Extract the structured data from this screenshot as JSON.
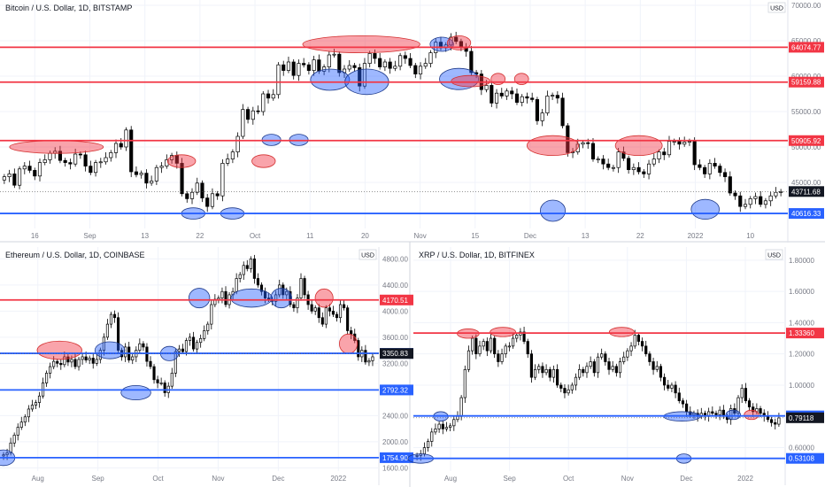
{
  "chart_data": [
    {
      "type": "candlestick",
      "title": "Bitcoin / U.S. Dollar, 1D, BITSTAMP",
      "currency": "USD",
      "ylim": [
        38500,
        70000
      ],
      "y_ticks": [
        "70000.00",
        "65000.00",
        "60000.00",
        "55000.00",
        "50000.00",
        "45000.00"
      ],
      "x_ticks": [
        "16",
        "Sep",
        "13",
        "22",
        "Oct",
        "11",
        "20",
        "Nov",
        "15",
        "Dec",
        "13",
        "22",
        "2022",
        "10"
      ],
      "last_price": 43711.68,
      "levels": [
        {
          "value": 64074.77,
          "label": "64074.77",
          "color": "#f23645"
        },
        {
          "value": 59159.88,
          "label": "59159.88",
          "color": "#f23645"
        },
        {
          "value": 50905.92,
          "label": "50905.92",
          "color": "#f23645"
        },
        {
          "value": 40616.33,
          "label": "40616.33",
          "color": "#2962ff"
        }
      ],
      "closes": [
        45800,
        46200,
        44600,
        46900,
        47300,
        46700,
        45900,
        47800,
        48200,
        49100,
        49400,
        48100,
        47800,
        47600,
        49000,
        48900,
        47300,
        46400,
        47800,
        47900,
        48500,
        49200,
        50500,
        50000,
        52400,
        46500,
        46100,
        46300,
        44900,
        45200,
        47100,
        47300,
        48200,
        48800,
        47700,
        43400,
        42700,
        43600,
        44900,
        42800,
        41600,
        43400,
        43100,
        47700,
        48300,
        49300,
        51500,
        55300,
        53900,
        55100,
        55000,
        57500,
        56900,
        57400,
        61600,
        60800,
        62000,
        60100,
        61800,
        61600,
        60800,
        62300,
        60700,
        61300,
        63000,
        63100,
        60500,
        61000,
        61500,
        61200,
        58600,
        61800,
        63200,
        62500,
        61300,
        62000,
        61100,
        61400,
        62900,
        62500,
        61500,
        60300,
        61400,
        61800,
        63300,
        64800,
        64000,
        64400,
        65500,
        64900,
        64100,
        63500,
        60500,
        60300,
        58100,
        58700,
        56200,
        57600,
        57200,
        57900,
        57500,
        56300,
        57100,
        56900,
        56700,
        53700,
        54800,
        57200,
        57300,
        56900,
        53000,
        49200,
        49300,
        50400,
        50600,
        50500,
        48300,
        48300,
        47600,
        47100,
        47100,
        49300,
        48400,
        46800,
        47100,
        46500,
        46200,
        47600,
        48300,
        49300,
        48900,
        50800,
        50800,
        50400,
        50700,
        50800,
        47500,
        47100,
        46200,
        47700,
        47300,
        46400,
        45800,
        43500,
        43100,
        41600,
        41900,
        42700,
        43000,
        41900,
        42400,
        43100,
        43600,
        43700
      ],
      "markers": [
        {
          "cx": 0.07,
          "cy": 50000,
          "rx": 0.06,
          "ry": 900,
          "color": "red"
        },
        {
          "cx": 0.23,
          "cy": 48000,
          "rx": 0.018,
          "ry": 900,
          "color": "red"
        },
        {
          "cx": 0.335,
          "cy": 48000,
          "rx": 0.015,
          "ry": 900,
          "color": "red"
        },
        {
          "cx": 0.245,
          "cy": 40616,
          "rx": 0.015,
          "ry": 800,
          "color": "blue"
        },
        {
          "cx": 0.295,
          "cy": 40616,
          "rx": 0.015,
          "ry": 800,
          "color": "blue"
        },
        {
          "cx": 0.345,
          "cy": 51000,
          "rx": 0.012,
          "ry": 800,
          "color": "blue"
        },
        {
          "cx": 0.38,
          "cy": 51000,
          "rx": 0.012,
          "ry": 800,
          "color": "blue"
        },
        {
          "cx": 0.42,
          "cy": 59500,
          "rx": 0.025,
          "ry": 1500,
          "color": "blue"
        },
        {
          "cx": 0.467,
          "cy": 59200,
          "rx": 0.028,
          "ry": 1800,
          "color": "blue"
        },
        {
          "cx": 0.46,
          "cy": 64500,
          "rx": 0.075,
          "ry": 1200,
          "color": "red"
        },
        {
          "cx": 0.563,
          "cy": 64500,
          "rx": 0.015,
          "ry": 1000,
          "color": "blue"
        },
        {
          "cx": 0.585,
          "cy": 64700,
          "rx": 0.015,
          "ry": 1000,
          "color": "red"
        },
        {
          "cx": 0.585,
          "cy": 59600,
          "rx": 0.025,
          "ry": 1500,
          "color": "blue"
        },
        {
          "cx": 0.6,
          "cy": 59300,
          "rx": 0.025,
          "ry": 800,
          "color": "red"
        },
        {
          "cx": 0.635,
          "cy": 59600,
          "rx": 0.009,
          "ry": 800,
          "color": "red"
        },
        {
          "cx": 0.665,
          "cy": 59600,
          "rx": 0.009,
          "ry": 800,
          "color": "red"
        },
        {
          "cx": 0.705,
          "cy": 50200,
          "rx": 0.033,
          "ry": 1400,
          "color": "red"
        },
        {
          "cx": 0.815,
          "cy": 50200,
          "rx": 0.03,
          "ry": 1400,
          "color": "red"
        },
        {
          "cx": 0.705,
          "cy": 41000,
          "rx": 0.016,
          "ry": 1500,
          "color": "blue"
        },
        {
          "cx": 0.9,
          "cy": 41200,
          "rx": 0.018,
          "ry": 1400,
          "color": "blue"
        }
      ]
    },
    {
      "type": "candlestick",
      "title": "Ethereum / U.S. Dollar, 1D, COINBASE",
      "currency": "USD",
      "ylim": [
        1550,
        4900
      ],
      "y_ticks": [
        "4800.00",
        "4400.00",
        "4000.00",
        "3600.00",
        "3200.00",
        "2800.00",
        "2400.00",
        "2000.00",
        "1600.00"
      ],
      "x_ticks": [
        "Aug",
        "Sep",
        "Oct",
        "Nov",
        "Dec",
        "2022"
      ],
      "last_price": 3350.83,
      "levels": [
        {
          "value": 4170.51,
          "label": "4170.51",
          "color": "#f23645"
        },
        {
          "value": 3352.69,
          "label": "3352.69",
          "color": "#2962ff"
        },
        {
          "value": 2792.32,
          "label": "2792.32",
          "color": "#2962ff"
        },
        {
          "value": 1754.9,
          "label": "1754.90",
          "color": "#2962ff"
        }
      ],
      "closes": [
        1800,
        1830,
        1980,
        2100,
        2220,
        2300,
        2380,
        2500,
        2560,
        2600,
        2700,
        2900,
        3050,
        3150,
        3230,
        3200,
        3180,
        3300,
        3220,
        3260,
        3150,
        3260,
        3300,
        3250,
        3280,
        3200,
        3260,
        3400,
        3600,
        3800,
        3950,
        3900,
        3400,
        3300,
        3450,
        3250,
        3300,
        3400,
        3500,
        3450,
        3230,
        3150,
        2950,
        2900,
        2900,
        2750,
        2850,
        3050,
        3380,
        3420,
        3380,
        3550,
        3600,
        3420,
        3520,
        3580,
        3700,
        3800,
        4100,
        4180,
        4200,
        4300,
        4100,
        4250,
        4300,
        4500,
        4560,
        4700,
        4650,
        4800,
        4500,
        4400,
        4300,
        4200,
        4180,
        4150,
        4250,
        4400,
        4250,
        4300,
        4100,
        4050,
        4200,
        4500,
        4250,
        4100,
        4000,
        4050,
        3900,
        3800,
        4050,
        4000,
        3950,
        3900,
        4100,
        4050,
        3700,
        3650,
        3550,
        3300,
        3400,
        3220,
        3240,
        3300
      ],
      "markers": [
        {
          "cx": 0.155,
          "cy": 3400,
          "rx": 0.06,
          "ry": 140,
          "color": "red"
        },
        {
          "cx": 0.29,
          "cy": 3400,
          "rx": 0.04,
          "ry": 130,
          "color": "blue"
        },
        {
          "cx": 0.36,
          "cy": 2750,
          "rx": 0.04,
          "ry": 110,
          "color": "blue"
        },
        {
          "cx": 0.45,
          "cy": 3350,
          "rx": 0.024,
          "ry": 110,
          "color": "blue"
        },
        {
          "cx": 0.53,
          "cy": 4200,
          "rx": 0.028,
          "ry": 150,
          "color": "blue"
        },
        {
          "cx": 0.67,
          "cy": 4200,
          "rx": 0.055,
          "ry": 140,
          "color": "blue"
        },
        {
          "cx": 0.75,
          "cy": 4200,
          "rx": 0.028,
          "ry": 150,
          "color": "blue"
        },
        {
          "cx": 0.865,
          "cy": 4200,
          "rx": 0.024,
          "ry": 140,
          "color": "red"
        },
        {
          "cx": 0.93,
          "cy": 3500,
          "rx": 0.024,
          "ry": 150,
          "color": "red"
        },
        {
          "cx": 0.005,
          "cy": 1754,
          "rx": 0.03,
          "ry": 120,
          "color": "blue"
        }
      ]
    },
    {
      "type": "candlestick",
      "title": "XRP / U.S. Dollar, 1D, BITFINEX",
      "currency": "USD",
      "ylim": [
        0.45,
        1.85
      ],
      "y_ticks": [
        "1.80000",
        "1.60000",
        "1.40000",
        "1.20000",
        "1.00000",
        "0.80000",
        "0.60000"
      ],
      "x_ticks": [
        "Aug",
        "Sep",
        "Oct",
        "Nov",
        "Dec",
        "2022"
      ],
      "last_price": 0.79118,
      "levels": [
        {
          "value": 1.3336,
          "label": "1.33360",
          "color": "#f23645"
        },
        {
          "value": 0.8033,
          "label": "0.80330",
          "color": "#2962ff"
        },
        {
          "value": 0.53108,
          "label": "0.53108",
          "color": "#2962ff"
        }
      ],
      "closes": [
        0.55,
        0.56,
        0.6,
        0.64,
        0.7,
        0.72,
        0.75,
        0.72,
        0.73,
        0.74,
        0.78,
        0.8,
        0.92,
        1.1,
        1.22,
        1.3,
        1.2,
        1.25,
        1.28,
        1.22,
        1.3,
        1.2,
        1.15,
        1.2,
        1.25,
        1.25,
        1.3,
        1.32,
        1.34,
        1.28,
        1.2,
        1.05,
        1.1,
        1.12,
        1.08,
        1.1,
        1.05,
        1.1,
        1.0,
        0.98,
        0.95,
        0.97,
        1.0,
        1.05,
        1.1,
        1.08,
        1.12,
        1.15,
        1.08,
        1.18,
        1.2,
        1.15,
        1.1,
        1.12,
        1.08,
        1.15,
        1.18,
        1.22,
        1.25,
        1.32,
        1.28,
        1.25,
        1.2,
        1.15,
        1.1,
        1.12,
        1.05,
        1.0,
        0.98,
        1.0,
        0.95,
        0.9,
        0.88,
        0.83,
        0.81,
        0.82,
        0.8,
        0.82,
        0.8,
        0.83,
        0.82,
        0.81,
        0.84,
        0.8,
        0.78,
        0.85,
        0.82,
        0.92,
        0.98,
        0.9,
        0.86,
        0.83,
        0.85,
        0.82,
        0.8,
        0.78,
        0.76,
        0.75,
        0.79
      ],
      "markers": [
        {
          "cx": 0.015,
          "cy": 0.53,
          "rx": 0.035,
          "ry": 0.03,
          "color": "blue"
        },
        {
          "cx": 0.07,
          "cy": 0.8,
          "rx": 0.02,
          "ry": 0.03,
          "color": "blue"
        },
        {
          "cx": 0.145,
          "cy": 1.33,
          "rx": 0.03,
          "ry": 0.03,
          "color": "red"
        },
        {
          "cx": 0.24,
          "cy": 1.34,
          "rx": 0.035,
          "ry": 0.03,
          "color": "red"
        },
        {
          "cx": 0.565,
          "cy": 1.34,
          "rx": 0.034,
          "ry": 0.03,
          "color": "red"
        },
        {
          "cx": 0.73,
          "cy": 0.8,
          "rx": 0.05,
          "ry": 0.03,
          "color": "blue"
        },
        {
          "cx": 0.735,
          "cy": 0.53,
          "rx": 0.02,
          "ry": 0.03,
          "color": "blue"
        },
        {
          "cx": 0.87,
          "cy": 0.81,
          "rx": 0.02,
          "ry": 0.03,
          "color": "blue"
        },
        {
          "cx": 0.92,
          "cy": 0.81,
          "rx": 0.02,
          "ry": 0.03,
          "color": "red"
        }
      ]
    }
  ]
}
